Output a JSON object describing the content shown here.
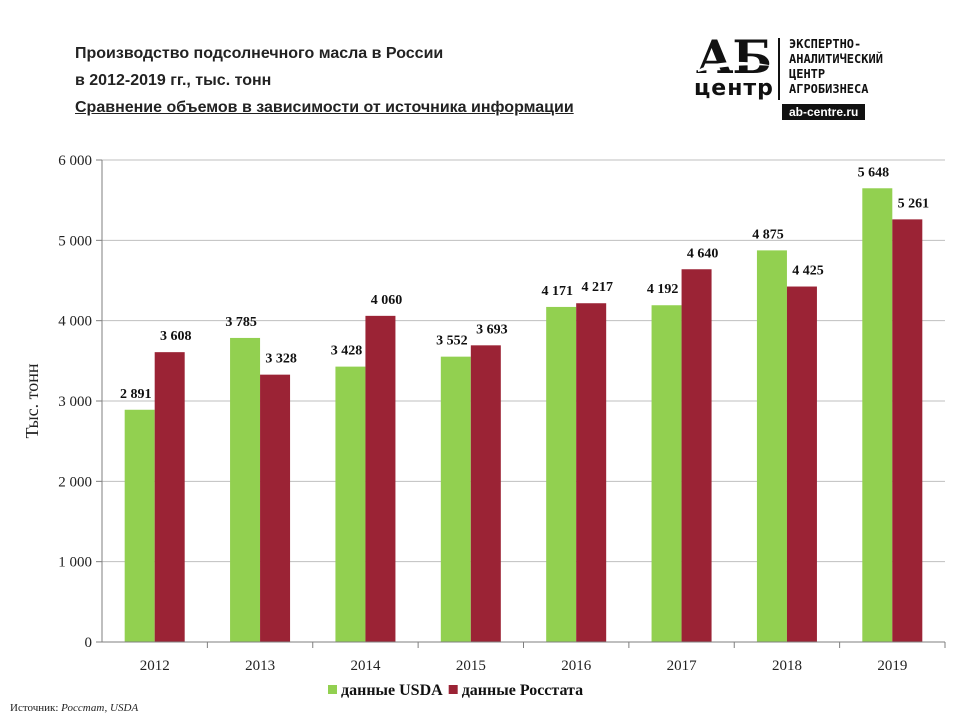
{
  "title": {
    "line1": "Производство  подсолнечного  масла в России",
    "line2": "в 2012-2019 гг., тыс. тонн",
    "line3": "Сравнение  объемов в зависимости от источника  информации"
  },
  "logo": {
    "mark": "АБ",
    "sub": "центр",
    "desc_line1": "ЭКСПЕРТНО-",
    "desc_line2": "АНАЛИТИЧЕСКИЙ",
    "desc_line3": "ЦЕНТР",
    "desc_line4": "АГРОБИЗНЕСА",
    "site": "ab-centre.ru"
  },
  "source": {
    "label": "Источник:",
    "value": "Росстат, USDA"
  },
  "colors": {
    "usda": "#92d050",
    "rosstat": "#9b2335",
    "grid": "#bfbfbf",
    "axis": "#7f7f7f"
  },
  "chart_data": {
    "type": "bar",
    "title": "",
    "xlabel": "",
    "ylabel": "Тыс. тонн",
    "ylim": [
      0,
      6000
    ],
    "yticks": [
      0,
      1000,
      2000,
      3000,
      4000,
      5000,
      6000
    ],
    "ytick_labels": [
      "0",
      "1 000",
      "2 000",
      "3 000",
      "4 000",
      "5 000",
      "6 000"
    ],
    "grid": true,
    "legend_position": "bottom",
    "categories": [
      "2012",
      "2013",
      "2014",
      "2015",
      "2016",
      "2017",
      "2018",
      "2019"
    ],
    "series": [
      {
        "name": "данные USDA",
        "values": [
          2891,
          3785,
          3428,
          3552,
          4171,
          4192,
          4875,
          5648
        ],
        "labels": [
          "2 891",
          "3 785",
          "3 428",
          "3 552",
          "4 171",
          "4 192",
          "4 875",
          "5 648"
        ]
      },
      {
        "name": "данные Росстата",
        "values": [
          3608,
          3328,
          4060,
          3693,
          4217,
          4640,
          4425,
          5261
        ],
        "labels": [
          "3 608",
          "3 328",
          "4 060",
          "3 693",
          "4 217",
          "4 640",
          "4 425",
          "5 261"
        ]
      }
    ]
  }
}
